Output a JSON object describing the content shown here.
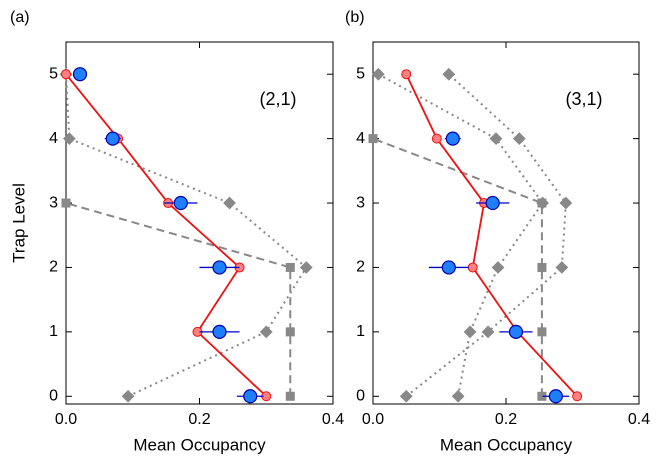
{
  "chart_data": [
    {
      "type": "line",
      "panel_label": "(a)",
      "annotation": "(2,1)",
      "xlabel": "Mean Occupancy",
      "ylabel": "Trap Level",
      "xlim": [
        0,
        0.4
      ],
      "xticks": [
        {
          "value": 0,
          "label": "0.0"
        },
        0.2,
        0.4
      ],
      "ylim": [
        -0.12,
        5.5
      ],
      "yticks": [
        0,
        1,
        2,
        3,
        4,
        5
      ],
      "y": [
        0,
        1,
        2,
        3,
        4,
        5
      ],
      "series": [
        {
          "color": "#888888",
          "linestyle": "dotted",
          "marker": "diamond",
          "values": [
            0.093,
            0.3,
            0.36,
            0.245,
            0.005,
            0
          ]
        },
        {
          "color": "#888888",
          "linestyle": "dashed",
          "marker": "square",
          "values": [
            0.336,
            0.336,
            0.336,
            0,
            null,
            null
          ]
        },
        {
          "color": "#ee1111",
          "linestyle": "solid",
          "marker": "circle",
          "values": [
            0.3,
            0.197,
            0.26,
            0.153,
            0.078,
            0
          ]
        },
        {
          "color": "#1e7fff",
          "linestyle": "none",
          "marker": "big-circle",
          "values": [
            0.276,
            0.23,
            0.23,
            0.172,
            0.07,
            0.021
          ],
          "errors": [
            0.02,
            0.03,
            0.03,
            0.025,
            0.012,
            0.006
          ]
        }
      ]
    },
    {
      "type": "line",
      "panel_label": "(b)",
      "annotation": "(3,1)",
      "xlabel": "Mean Occupancy",
      "xlim": [
        0,
        0.4
      ],
      "xticks": [
        {
          "value": 0,
          "label": "0.0"
        },
        0.2,
        0.4
      ],
      "ylim": [
        -0.12,
        5.5
      ],
      "yticks": [
        0,
        1,
        2,
        3,
        4,
        5
      ],
      "y": [
        0,
        1,
        2,
        3,
        4,
        5
      ],
      "series": [
        {
          "color": "#888888",
          "linestyle": "dotted",
          "marker": "diamond",
          "values": [
            0.05,
            0.173,
            0.284,
            0.29,
            0.22,
            0.114
          ]
        },
        {
          "color": "#888888",
          "linestyle": "dotted",
          "marker": "diamond",
          "values": [
            0.128,
            0.146,
            0.188,
            0.255,
            0.185,
            0.008
          ]
        },
        {
          "color": "#888888",
          "linestyle": "dashed",
          "marker": "square",
          "values": [
            0.254,
            0.254,
            0.254,
            0.254,
            0,
            null
          ]
        },
        {
          "color": "#ee1111",
          "linestyle": "solid",
          "marker": "circle",
          "values": [
            0.307,
            0.217,
            0.15,
            0.167,
            0.096,
            0.05
          ]
        },
        {
          "color": "#1e7fff",
          "linestyle": "none",
          "marker": "big-circle",
          "values": [
            0.275,
            0.215,
            0.114,
            0.18,
            0.12,
            null
          ],
          "errors": [
            0.02,
            0.025,
            0.03,
            0.025,
            0.012,
            null
          ]
        }
      ]
    }
  ]
}
